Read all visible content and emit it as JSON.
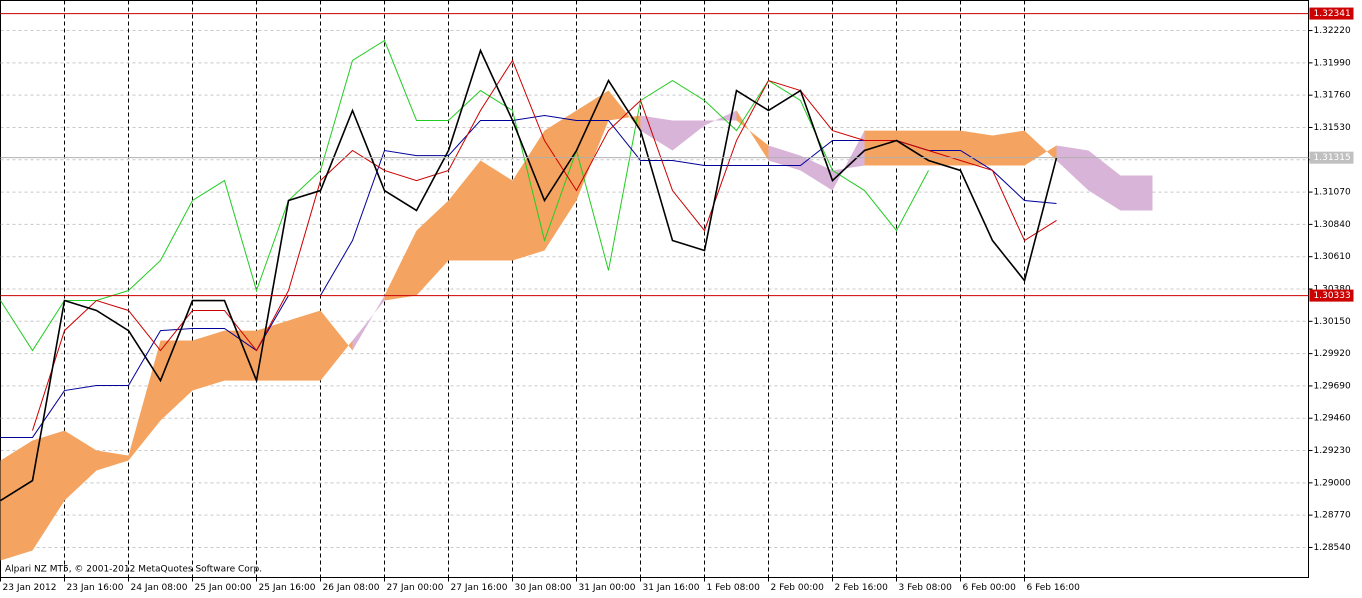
{
  "chart_data": {
    "type": "ichimoku",
    "footer": "Alpari NZ MT5, © 2001-2012 MetaQuotes Software Corp.",
    "xlim": [
      0,
      327
    ],
    "ylim": [
      1.28326,
      1.32434
    ],
    "xticks": [
      {
        "value": 0,
        "label": "23 Jan 2012"
      },
      {
        "value": 16,
        "label": "23 Jan 16:00"
      },
      {
        "value": 32,
        "label": "24 Jan 08:00"
      },
      {
        "value": 48,
        "label": "25 Jan 00:00"
      },
      {
        "value": 64,
        "label": "25 Jan 16:00"
      },
      {
        "value": 80,
        "label": "26 Jan 08:00"
      },
      {
        "value": 96,
        "label": "27 Jan 00:00"
      },
      {
        "value": 112,
        "label": "27 Jan 16:00"
      },
      {
        "value": 128,
        "label": "30 Jan 08:00"
      },
      {
        "value": 144,
        "label": "31 Jan 00:00"
      },
      {
        "value": 160,
        "label": "31 Jan 16:00"
      },
      {
        "value": 176,
        "label": "1 Feb 08:00"
      },
      {
        "value": 192,
        "label": "2 Feb 00:00"
      },
      {
        "value": 208,
        "label": "2 Feb 16:00"
      },
      {
        "value": 224,
        "label": "3 Feb 08:00"
      },
      {
        "value": 240,
        "label": "6 Feb 00:00"
      },
      {
        "value": 256,
        "label": "6 Feb 16:00"
      }
    ],
    "yticks": [
      {
        "value": 1.3222,
        "label": "1.32220"
      },
      {
        "value": 1.3199,
        "label": "1.31990"
      },
      {
        "value": 1.3176,
        "label": "1.31760"
      },
      {
        "value": 1.3153,
        "label": "1.31530"
      },
      {
        "value": 1.313,
        "label": "1.31300"
      },
      {
        "value": 1.3107,
        "label": "1.31070"
      },
      {
        "value": 1.3084,
        "label": "1.30840"
      },
      {
        "value": 1.3061,
        "label": "1.30610"
      },
      {
        "value": 1.3038,
        "label": "1.30380"
      },
      {
        "value": 1.3015,
        "label": "1.30150"
      },
      {
        "value": 1.2992,
        "label": "1.29920"
      },
      {
        "value": 1.2969,
        "label": "1.29690"
      },
      {
        "value": 1.2946,
        "label": "1.29460"
      },
      {
        "value": 1.2923,
        "label": "1.29230"
      },
      {
        "value": 1.29,
        "label": "1.29000"
      },
      {
        "value": 1.2877,
        "label": "1.28770"
      },
      {
        "value": 1.2854,
        "label": "1.28540"
      }
    ],
    "grid": true,
    "levels": [
      1.32341,
      1.30333
    ],
    "level_color": "#cc0000",
    "current_price": 1.31315,
    "x": [
      0,
      8,
      16,
      24,
      32,
      40,
      48,
      56,
      64,
      72,
      80,
      88,
      96,
      104,
      112,
      120,
      128,
      136,
      144,
      152,
      160,
      168,
      176,
      184,
      192,
      200,
      208,
      216,
      224,
      232,
      240,
      248,
      256,
      264,
      272,
      280,
      288
    ],
    "cloud": {
      "bull_color": "#f4a460",
      "bear_color": "#d8b4d8",
      "senkou_a": [
        1.29159,
        1.29301,
        1.29372,
        1.2923,
        1.29194,
        1.30013,
        1.30013,
        1.30084,
        1.30084,
        1.30156,
        1.30227,
        1.29942,
        1.30334,
        1.30796,
        1.3101,
        1.31295,
        1.31152,
        1.31508,
        1.31651,
        1.31793,
        1.31508,
        1.31366,
        1.31544,
        1.31651,
        1.31295,
        1.31224,
        1.31081,
        1.31508,
        1.31508,
        1.31508,
        1.31508,
        1.31473,
        1.31508,
        1.31295,
        1.31081,
        1.30939,
        1.30939
      ],
      "senkou_b": [
        1.28447,
        1.28518,
        1.28874,
        1.29088,
        1.29159,
        1.29444,
        1.29657,
        1.29728,
        1.29728,
        1.29728,
        1.29728,
        1.30013,
        1.30298,
        1.30334,
        1.30583,
        1.30583,
        1.30583,
        1.30654,
        1.3101,
        1.3158,
        1.31615,
        1.3158,
        1.3158,
        1.3158,
        1.31402,
        1.3133,
        1.31224,
        1.31259,
        1.31259,
        1.31259,
        1.31259,
        1.31259,
        1.31259,
        1.31402,
        1.31366,
        1.31188,
        1.31188
      ]
    },
    "series": [
      {
        "color": "#22cc22",
        "values": [
          1.30298,
          1.29942,
          1.30298,
          1.30298,
          1.30369,
          1.30583,
          1.3101,
          1.31152,
          1.30369,
          1.3101,
          1.31224,
          1.32007,
          1.32149,
          1.3158,
          1.3158,
          1.31793,
          1.31651,
          1.30725,
          1.31366,
          1.30512,
          1.31722,
          1.31864,
          1.31722,
          1.31508,
          1.31864,
          1.31722,
          1.31224,
          1.31081,
          1.30796,
          1.31224,
          null,
          null,
          null,
          null,
          null,
          null,
          null
        ]
      },
      {
        "color": "#000099",
        "values": [
          1.29323,
          1.29323,
          1.29657,
          1.29693,
          1.29693,
          1.30084,
          1.30099,
          1.30099,
          1.29942,
          1.30334,
          1.30334,
          1.30725,
          1.31366,
          1.3133,
          1.3133,
          1.3158,
          1.3158,
          1.31615,
          1.3158,
          1.3158,
          1.31295,
          1.31295,
          1.31259,
          1.31259,
          1.31259,
          1.31259,
          1.31437,
          1.31437,
          1.31437,
          1.31366,
          1.31366,
          1.31224,
          1.3101,
          1.30989,
          null,
          null,
          null
        ]
      },
      {
        "color": "#cc0000",
        "values": [
          null,
          1.29372,
          1.30084,
          1.30298,
          1.30227,
          1.29942,
          1.30227,
          1.30227,
          1.29942,
          1.30369,
          1.31152,
          1.31366,
          1.31224,
          1.31152,
          1.31224,
          1.31651,
          1.32007,
          1.31437,
          1.31081,
          1.31508,
          1.31722,
          1.31081,
          1.30796,
          1.31437,
          1.31864,
          1.31793,
          1.31508,
          1.31437,
          1.31437,
          1.31366,
          1.31295,
          1.31224,
          1.30725,
          1.30868,
          null,
          null,
          null
        ]
      },
      {
        "color": "#000000",
        "values": [
          1.28874,
          1.29016,
          1.30298,
          1.30227,
          1.30084,
          1.29728,
          1.30298,
          1.30298,
          1.29728,
          1.3101,
          1.31081,
          1.31651,
          1.31081,
          1.30939,
          1.31366,
          1.32078,
          1.3158,
          1.3101,
          1.31366,
          1.31864,
          1.31508,
          1.30725,
          1.30654,
          1.31793,
          1.31651,
          1.31793,
          1.31152,
          1.31366,
          1.31437,
          1.31295,
          1.31224,
          1.30725,
          1.3044,
          1.31315,
          null,
          null,
          null
        ]
      }
    ]
  }
}
